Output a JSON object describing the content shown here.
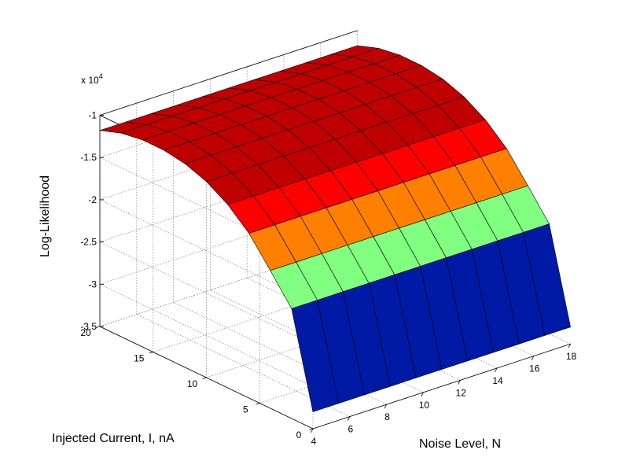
{
  "chart_data": {
    "type": "surface",
    "title": "",
    "xlabel": "Noise Level, N",
    "ylabel": "Injected Current, I, nA",
    "zlabel": "Log-Likelihood",
    "z_exponent_label": "x 10",
    "z_exponent_power": "4",
    "x_ticks": [
      4,
      6,
      8,
      10,
      12,
      14,
      16,
      18
    ],
    "y_ticks": [
      0,
      5,
      10,
      15,
      20
    ],
    "z_ticks": [
      -1,
      -1.5,
      -2,
      -2.5,
      -3,
      -3.5
    ],
    "xlim": [
      4,
      18
    ],
    "ylim": [
      0,
      20
    ],
    "zlim": [
      -3.5,
      -1
    ],
    "grid": true,
    "colormap": "jet",
    "noise_values": [
      4,
      5.4,
      6.8,
      8.2,
      9.6,
      11,
      12.4,
      13.8,
      15.2,
      16.6,
      18
    ],
    "current_values": [
      0,
      2,
      4,
      6,
      8,
      10,
      12,
      14,
      16,
      18,
      20
    ],
    "z_values_x1e4": [
      [
        -3.3,
        -3.3,
        -3.3,
        -3.3,
        -3.3,
        -3.3,
        -3.3,
        -3.3,
        -3.3,
        -3.3,
        -3.3
      ],
      [
        -2.2,
        -2.2,
        -2.2,
        -2.2,
        -2.2,
        -2.2,
        -2.2,
        -2.2,
        -2.2,
        -2.2,
        -2.2
      ],
      [
        -1.87,
        -1.87,
        -1.87,
        -1.87,
        -1.87,
        -1.87,
        -1.87,
        -1.87,
        -1.87,
        -1.87,
        -1.87
      ],
      [
        -1.55,
        -1.55,
        -1.55,
        -1.55,
        -1.55,
        -1.55,
        -1.55,
        -1.55,
        -1.55,
        -1.55,
        -1.55
      ],
      [
        -1.33,
        -1.33,
        -1.33,
        -1.33,
        -1.33,
        -1.33,
        -1.33,
        -1.33,
        -1.33,
        -1.33,
        -1.33
      ],
      [
        -1.18,
        -1.18,
        -1.18,
        -1.18,
        -1.18,
        -1.18,
        -1.18,
        -1.18,
        -1.18,
        -1.18,
        -1.18
      ],
      [
        -1.09,
        -1.09,
        -1.09,
        -1.09,
        -1.09,
        -1.09,
        -1.09,
        -1.09,
        -1.09,
        -1.09,
        -1.09
      ],
      [
        -1.05,
        -1.05,
        -1.05,
        -1.05,
        -1.05,
        -1.05,
        -1.05,
        -1.05,
        -1.05,
        -1.05,
        -1.05
      ],
      [
        -1.05,
        -1.05,
        -1.05,
        -1.05,
        -1.05,
        -1.05,
        -1.05,
        -1.05,
        -1.05,
        -1.05,
        -1.05
      ],
      [
        -1.09,
        -1.09,
        -1.09,
        -1.09,
        -1.09,
        -1.09,
        -1.09,
        -1.09,
        -1.09,
        -1.09,
        -1.09
      ],
      [
        -1.18,
        -1.18,
        -1.18,
        -1.18,
        -1.18,
        -1.18,
        -1.18,
        -1.18,
        -1.18,
        -1.18,
        -1.18
      ]
    ],
    "color_bands": [
      {
        "min": -3.5,
        "max": -2.4,
        "color": "#001aa6"
      },
      {
        "min": -2.4,
        "max": -1.95,
        "color": "#80ff80"
      },
      {
        "min": -1.95,
        "max": -1.7,
        "color": "#ff8000"
      },
      {
        "min": -1.7,
        "max": -1.36,
        "color": "#ff0000"
      },
      {
        "min": -1.36,
        "max": -1.0,
        "color": "#c00000"
      }
    ]
  }
}
